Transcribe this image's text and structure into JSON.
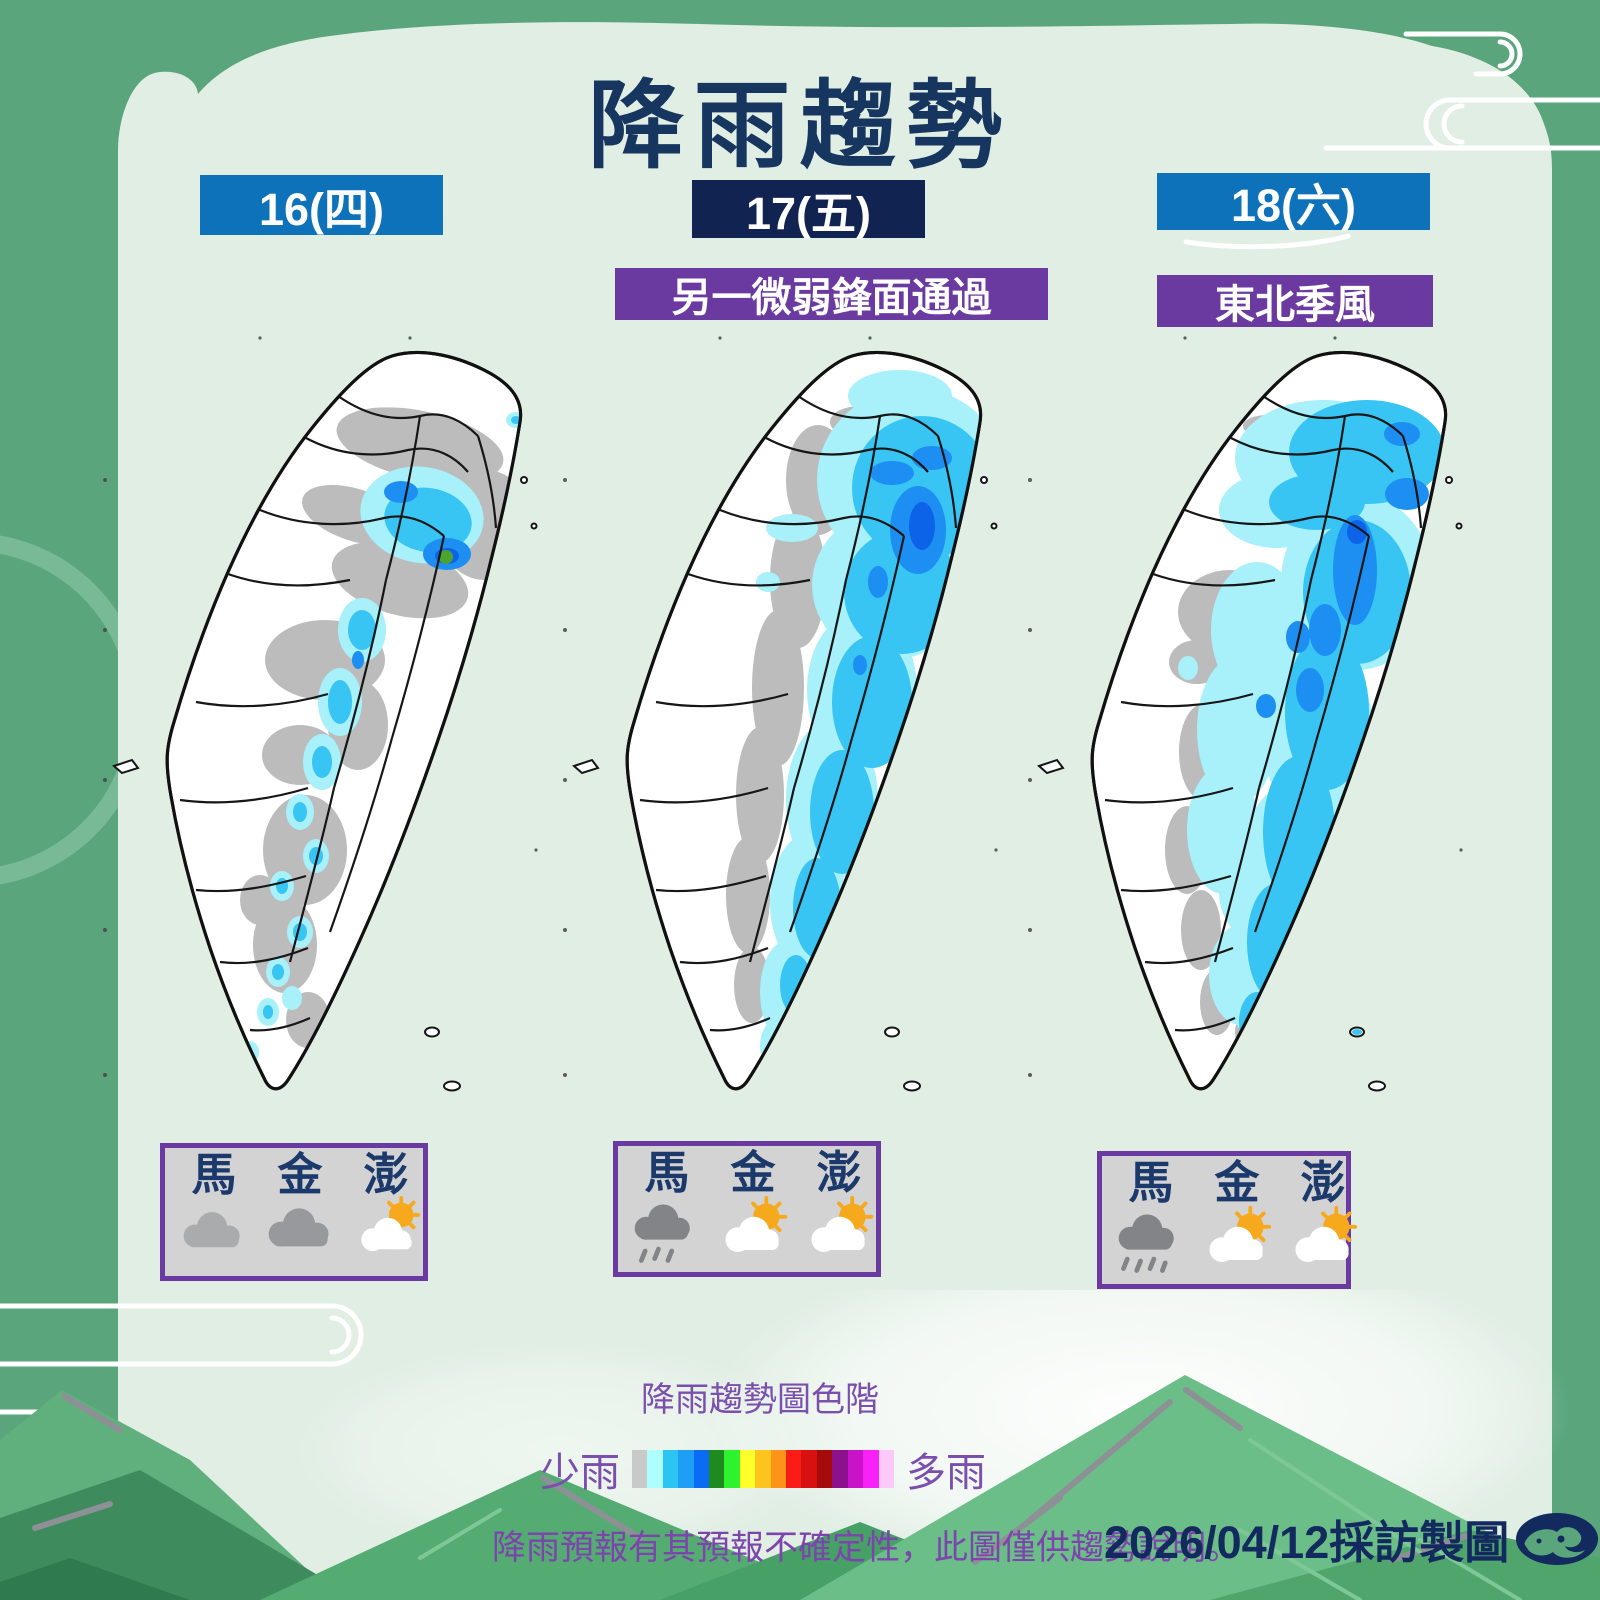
{
  "page_title": "降雨趨勢",
  "days": [
    {
      "tag": "16(四)",
      "banner": ""
    },
    {
      "tag": "17(五)",
      "banner": "另一微弱鋒面通過"
    },
    {
      "tag": "18(六)",
      "banner": "東北季風"
    }
  ],
  "offshore_islands": {
    "labels": [
      "馬",
      "金",
      "澎"
    ],
    "per_day_icons": [
      [
        "cloudy-icon",
        "cloudy-icon",
        "partly-sunny-icon"
      ],
      [
        "rain-cloud-icon",
        "partly-sunny-icon",
        "partly-sunny-icon"
      ],
      [
        "rain-cloud-icon",
        "partly-sunny-icon",
        "partly-sunny-icon"
      ]
    ]
  },
  "legend": {
    "title": "降雨趨勢圖色階",
    "left_label": "少雨",
    "right_label": "多雨",
    "colors": [
      "#c9c9c9",
      "#aeffff",
      "#2cc4f2",
      "#1e9ef5",
      "#0b6bf2",
      "#1f8a1f",
      "#2ef22e",
      "#ffff2a",
      "#fdc41d",
      "#fb9419",
      "#fb1d15",
      "#d81010",
      "#a50b0b",
      "#8d118d",
      "#c913c9",
      "#f821f8",
      "#fdc9f8"
    ]
  },
  "footer": {
    "disclaimer": "降雨預報有其預報不確定性，此圖僅供趨勢說明。",
    "credit": "2026/04/12採訪製圖",
    "logo": "cwa-logo"
  },
  "palette": {
    "background_green": "#5aa57c",
    "panel_mint": "#e0eee3",
    "title_navy": "#17365f",
    "tag_blue": "#0e72ba",
    "tag_navy": "#112350",
    "banner_purple": "#6a3aa0",
    "box_gray": "#d3d3d3",
    "map_rain_colors": {
      "trace_gray": "#bcbcbc",
      "light_rain": "#a8f0fa",
      "moderate_rain": "#38c5f3",
      "heavy_rain": "#1e8ff2",
      "intense_rain": "#0c63e8",
      "peak_green": "#4da32f"
    }
  }
}
